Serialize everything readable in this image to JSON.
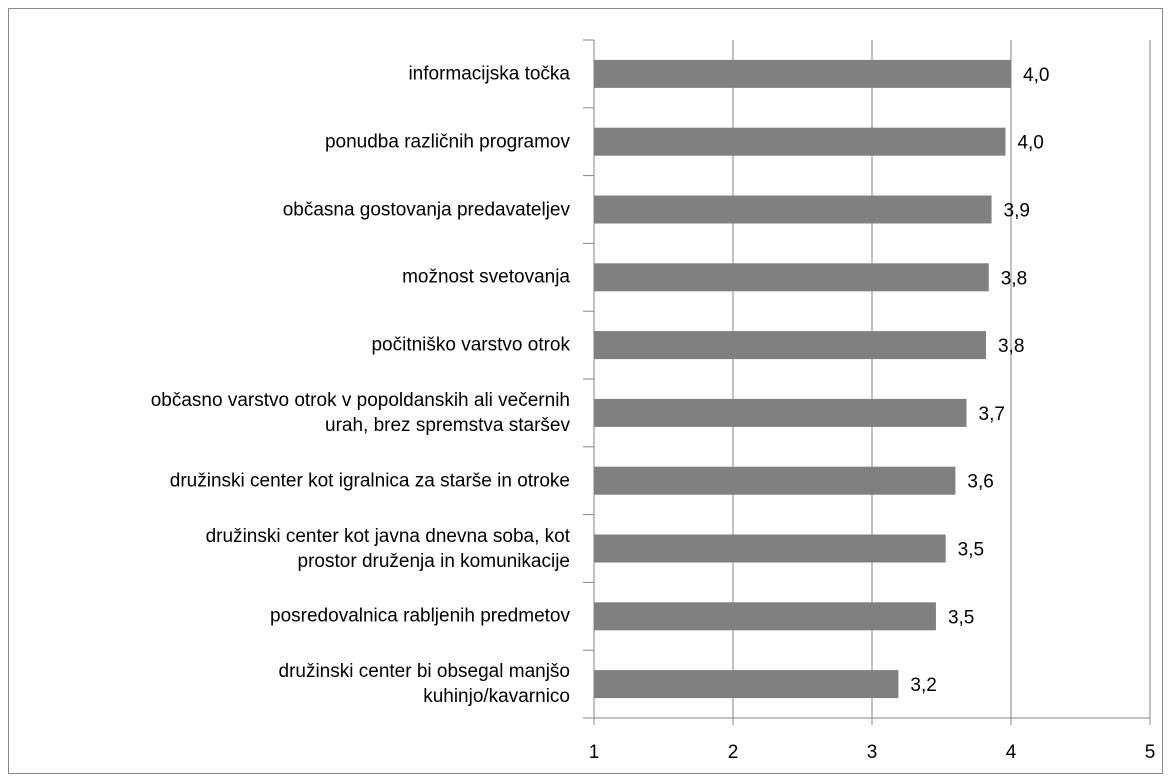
{
  "chart_data": {
    "type": "bar",
    "orientation": "horizontal",
    "categories": [
      "informacijska točka",
      "ponudba različnih programov",
      "občasna gostovanja predavateljev",
      "možnost svetovanja ",
      "počitniško varstvo otrok",
      "občasno varstvo otrok v popoldanskih ali večernih\nurah, brez spremstva staršev",
      "družinski center kot igralnica za starše in otroke",
      "družinski center kot javna dnevna soba, kot\nprostor druženja in komunikacije",
      "posredovalnica rabljenih predmetov",
      "družinski center bi obsegal manjšo\nkuhinjo/kavarnico"
    ],
    "values": [
      4.0,
      3.96,
      3.86,
      3.84,
      3.82,
      3.68,
      3.6,
      3.53,
      3.46,
      3.19
    ],
    "value_labels": [
      "4,0",
      "4,0",
      "3,9",
      "3,8",
      "3,8",
      "3,7",
      "3,6",
      "3,5",
      "3,5",
      "3,2"
    ],
    "color": "#808080",
    "xlim": [
      1,
      5
    ],
    "xticks": [
      1,
      2,
      3,
      4,
      5
    ],
    "grid": true
  }
}
